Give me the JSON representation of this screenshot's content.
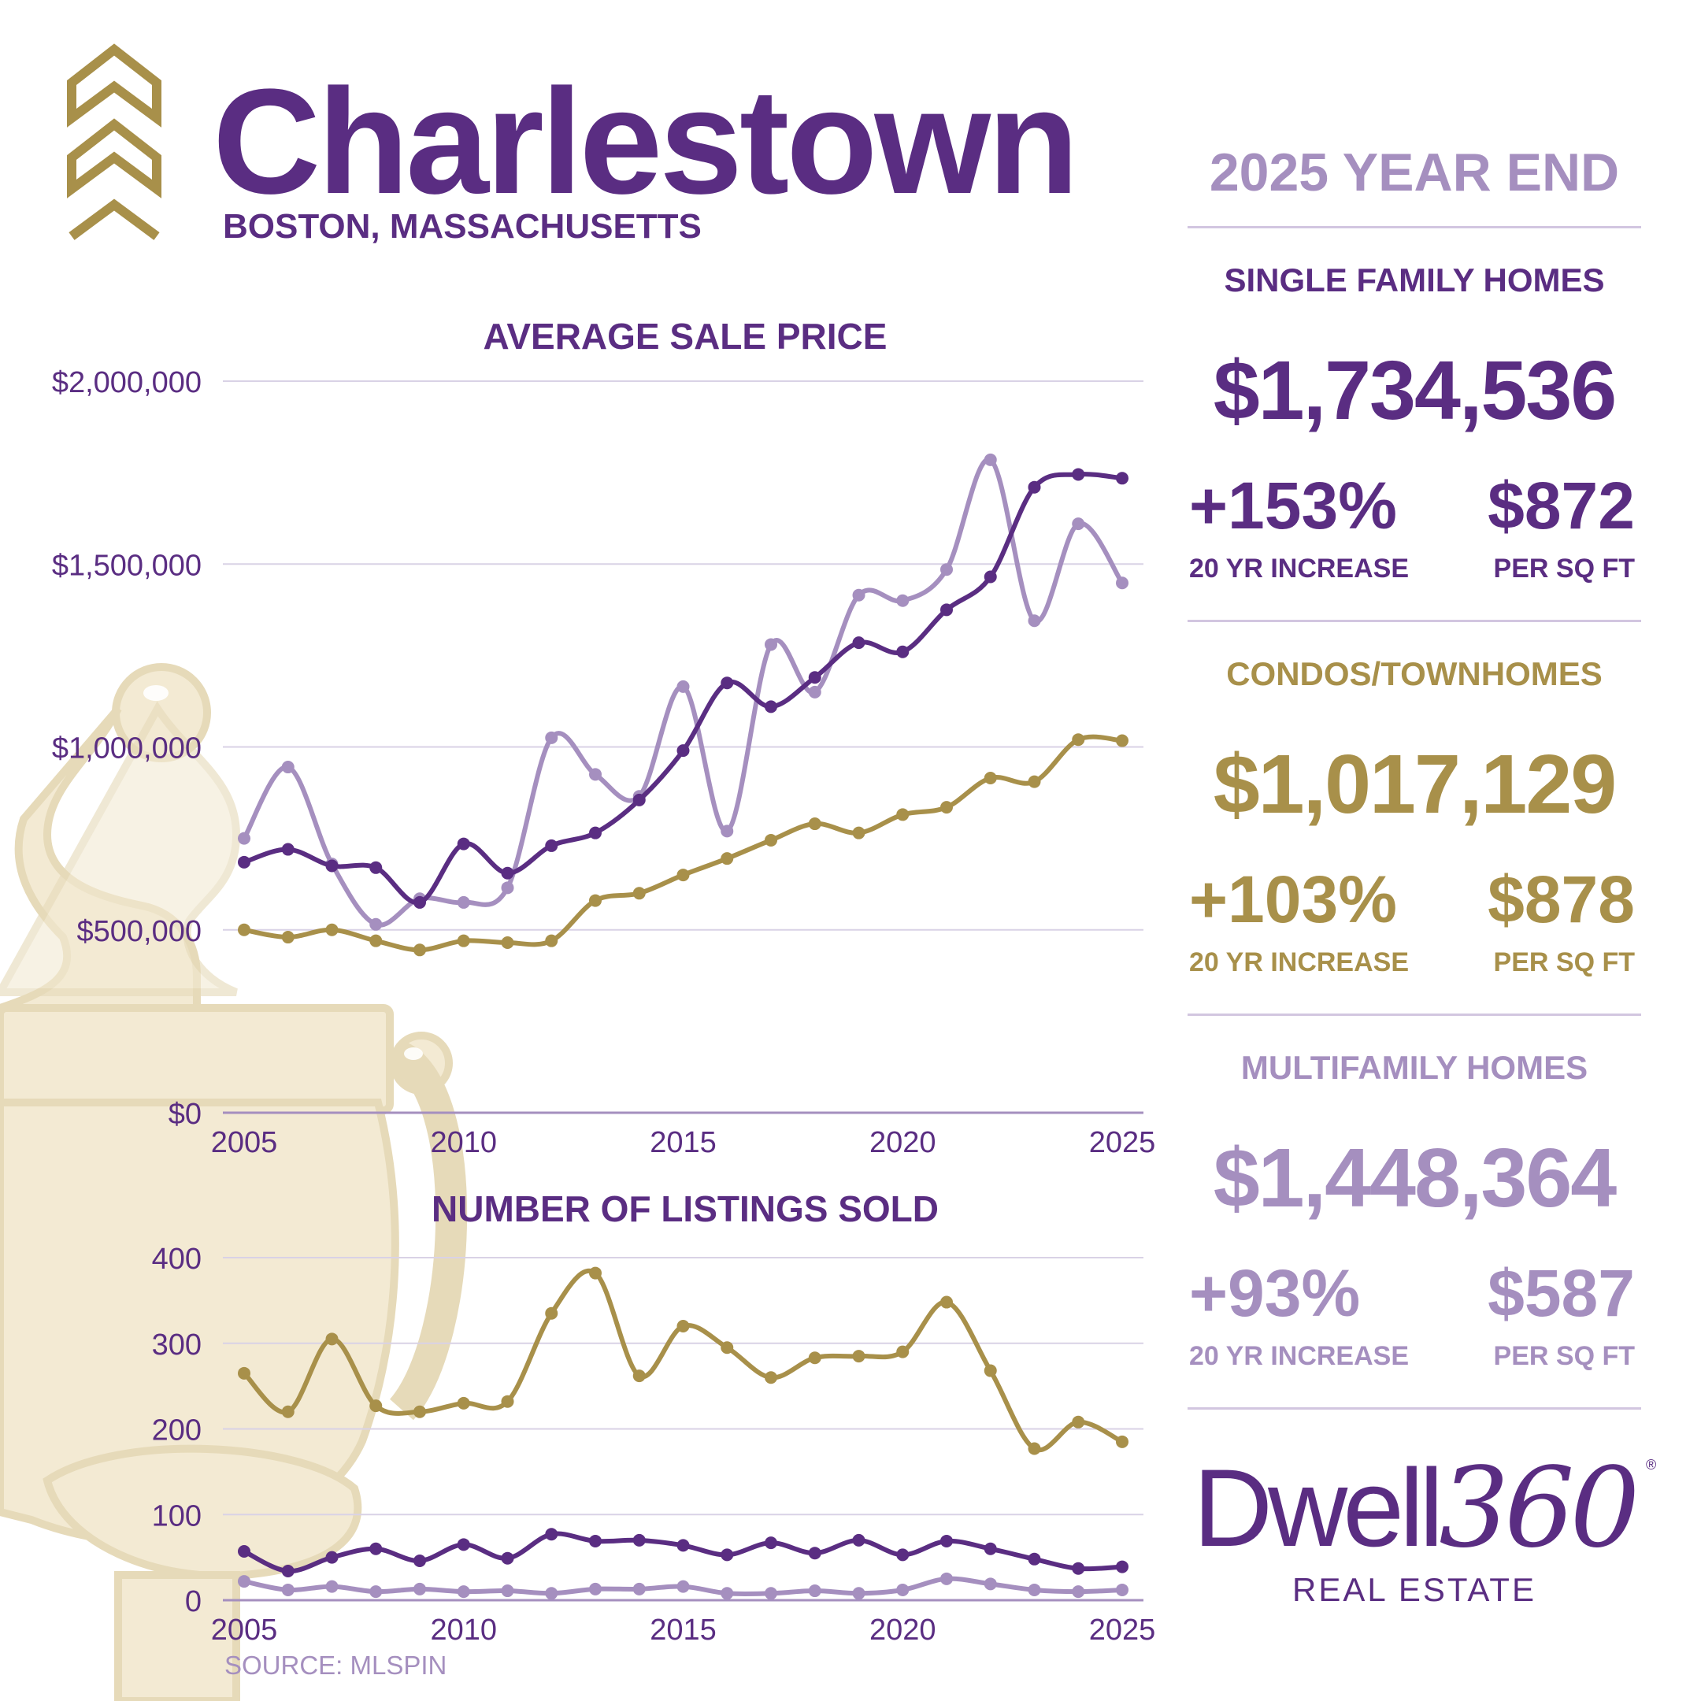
{
  "header": {
    "title": "Charlestown",
    "subtitle": "BOSTON, MASSACHUSETTS",
    "logo_icon": "chevrons-up-icon"
  },
  "colors": {
    "single_family": "#5a2d82",
    "condos": "#a8904a",
    "multifamily": "#a58fbf",
    "grid": "#d9d2e6",
    "knocker": "#efe5cc"
  },
  "chart_data": [
    {
      "type": "line",
      "title": "AVERAGE SALE PRICE",
      "x": [
        2005,
        2006,
        2007,
        2008,
        2009,
        2010,
        2011,
        2012,
        2013,
        2014,
        2015,
        2016,
        2017,
        2018,
        2019,
        2020,
        2021,
        2022,
        2023,
        2024,
        2025
      ],
      "ylim": [
        0,
        2000000
      ],
      "yticks": [
        0,
        500000,
        1000000,
        1500000,
        2000000
      ],
      "ytick_labels": [
        "$0",
        "$500,000",
        "$1,000,000",
        "$1,500,000",
        "$2,000,000"
      ],
      "xticks": [
        2005,
        2010,
        2015,
        2020,
        2025
      ],
      "xtick_labels": [
        "2005",
        "2010",
        "2015",
        "2020",
        "2025"
      ],
      "grid": true,
      "series": [
        {
          "key": "multifamily",
          "values": [
            750000,
            945000,
            680000,
            515000,
            585000,
            575000,
            615000,
            1025000,
            925000,
            865000,
            1165000,
            770000,
            1280000,
            1150000,
            1415000,
            1400000,
            1485000,
            1785000,
            1345000,
            1610000,
            1448364
          ]
        },
        {
          "key": "single_family",
          "values": [
            685000,
            720000,
            675000,
            670000,
            575000,
            735000,
            655000,
            730000,
            765000,
            855000,
            990000,
            1175000,
            1110000,
            1190000,
            1285000,
            1260000,
            1375000,
            1465000,
            1710000,
            1745000,
            1734536
          ]
        },
        {
          "key": "condos",
          "values": [
            500000,
            480000,
            500000,
            470000,
            445000,
            470000,
            465000,
            470000,
            580000,
            600000,
            650000,
            695000,
            745000,
            790000,
            765000,
            815000,
            835000,
            915000,
            905000,
            1020000,
            1017129
          ]
        }
      ]
    },
    {
      "type": "line",
      "title": "NUMBER OF LISTINGS SOLD",
      "x": [
        2005,
        2006,
        2007,
        2008,
        2009,
        2010,
        2011,
        2012,
        2013,
        2014,
        2015,
        2016,
        2017,
        2018,
        2019,
        2020,
        2021,
        2022,
        2023,
        2024,
        2025
      ],
      "ylim": [
        0,
        400
      ],
      "yticks": [
        0,
        100,
        200,
        300,
        400
      ],
      "ytick_labels": [
        "0",
        "100",
        "200",
        "300",
        "400"
      ],
      "xticks": [
        2005,
        2010,
        2015,
        2020,
        2025
      ],
      "xtick_labels": [
        "2005",
        "2010",
        "2015",
        "2020",
        "2025"
      ],
      "grid": true,
      "series": [
        {
          "key": "condos",
          "values": [
            265,
            220,
            305,
            227,
            220,
            230,
            232,
            335,
            382,
            262,
            320,
            295,
            260,
            283,
            285,
            290,
            348,
            268,
            177,
            208,
            185
          ]
        },
        {
          "key": "single_family",
          "values": [
            57,
            34,
            50,
            60,
            46,
            65,
            49,
            77,
            69,
            70,
            64,
            53,
            67,
            55,
            70,
            53,
            69,
            60,
            48,
            37,
            39
          ]
        },
        {
          "key": "multifamily",
          "values": [
            22,
            12,
            16,
            10,
            13,
            10,
            11,
            8,
            13,
            13,
            16,
            8,
            8,
            11,
            8,
            12,
            25,
            19,
            12,
            10,
            12
          ]
        }
      ]
    }
  ],
  "source": "SOURCE: MLSPIN",
  "panel": {
    "period": "2025 YEAR END",
    "sections": [
      {
        "title": "SINGLE FAMILY HOMES",
        "price": "$1,734,536",
        "increase": "+153%",
        "increase_label": "20 YR INCREASE",
        "ppsf": "$872",
        "ppsf_label": "PER SQ FT"
      },
      {
        "title": "CONDOS/TOWNHOMES",
        "price": "$1,017,129",
        "increase": "+103%",
        "increase_label": "20 YR INCREASE",
        "ppsf": "$878",
        "ppsf_label": "PER SQ FT"
      },
      {
        "title": "MULTIFAMILY HOMES",
        "price": "$1,448,364",
        "increase": "+93%",
        "increase_label": "20 YR INCREASE",
        "ppsf": "$587",
        "ppsf_label": "PER SQ FT"
      }
    ]
  },
  "brand": {
    "word": "Dwell",
    "number": "360",
    "registered": "®",
    "tagline": "REAL ESTATE"
  }
}
